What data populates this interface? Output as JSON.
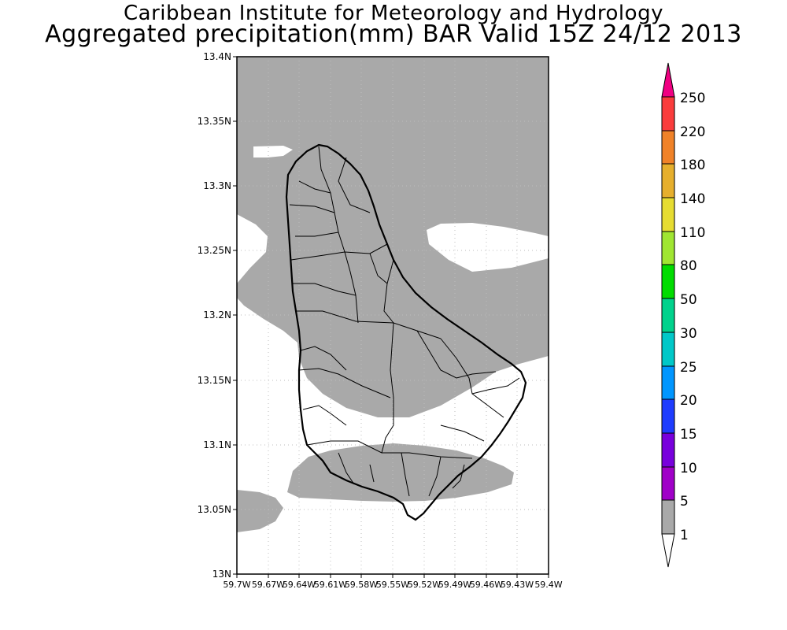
{
  "header": {
    "org": "Caribbean Institute for Meteorology and Hydrology",
    "product": "Aggregated precipitation(mm) BAR Valid 15Z 24/12 2013"
  },
  "map": {
    "region": "Barbados",
    "lat_labels": [
      "13.4N",
      "13.35N",
      "13.3N",
      "13.25N",
      "13.2N",
      "13.15N",
      "13.1N",
      "13.05N",
      "13N"
    ],
    "lon_labels": [
      "59.7W",
      "59.67W",
      "59.64W",
      "59.61W",
      "59.58W",
      "59.55W",
      "59.52W",
      "59.49W",
      "59.46W",
      "59.43W",
      "59.4W"
    ],
    "lat_range": [
      13.0,
      13.4
    ],
    "lon_range": [
      -59.7,
      -59.4
    ],
    "grid": "dotted",
    "shaded_colour": "#a9a9a9"
  },
  "colorbar": {
    "levels": [
      "1",
      "5",
      "10",
      "15",
      "20",
      "25",
      "30",
      "50",
      "80",
      "110",
      "140",
      "180",
      "220",
      "250"
    ],
    "colors": [
      "#ffffff",
      "#a9a9a9",
      "#a000c8",
      "#7800dc",
      "#1e3cff",
      "#0096ff",
      "#00c8c8",
      "#00d28c",
      "#00dc00",
      "#a0e632",
      "#e6dc32",
      "#e6af2d",
      "#f08228",
      "#fa3c3c",
      "#f00082"
    ]
  }
}
